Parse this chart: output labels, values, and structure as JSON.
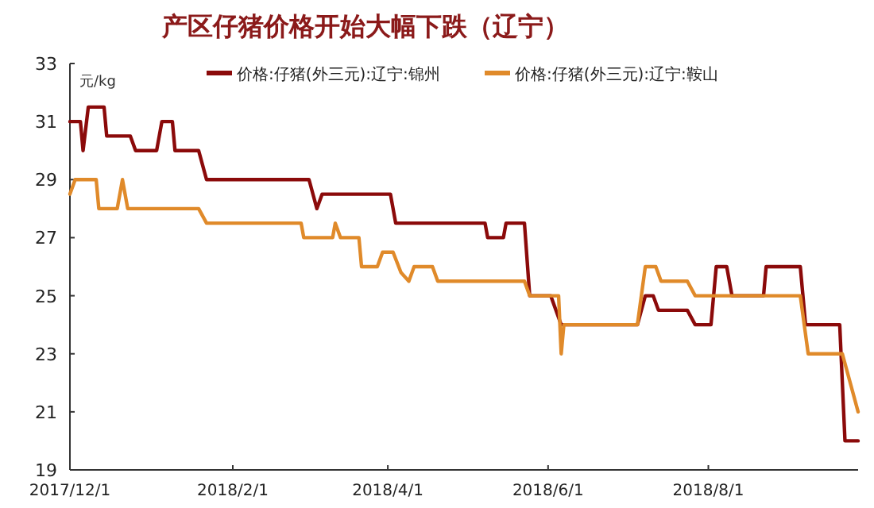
{
  "chart_data": {
    "type": "line",
    "title": "产区仔猪价格开始大幅下跌（辽宁）",
    "ylabel": "元/kg",
    "xlim": [
      "2017-12-01",
      "2018-09-27"
    ],
    "xticks": [
      {
        "value": "2017-12-01",
        "label": "2017/12/1"
      },
      {
        "value": "2018-02-01",
        "label": "2018/2/1"
      },
      {
        "value": "2018-04-01",
        "label": "2018/4/1"
      },
      {
        "value": "2018-06-01",
        "label": "2018/6/1"
      },
      {
        "value": "2018-08-01",
        "label": "2018/8/1"
      }
    ],
    "ylim": [
      19,
      33
    ],
    "yticks": [
      19,
      21,
      23,
      25,
      27,
      29,
      31,
      33
    ],
    "grid": false,
    "legend": "top",
    "line_style": "solid",
    "series": [
      {
        "name": "价格:仔猪(外三元):辽宁:锦州",
        "color": "#8b0a0a",
        "x": [
          "2017-12-01",
          "2017-12-05",
          "2017-12-06",
          "2017-12-08",
          "2017-12-14",
          "2017-12-15",
          "2017-12-24",
          "2017-12-26",
          "2018-01-03",
          "2018-01-05",
          "2018-01-09",
          "2018-01-10",
          "2018-01-19",
          "2018-01-22",
          "2018-03-02",
          "2018-03-05",
          "2018-03-07",
          "2018-04-02",
          "2018-04-04",
          "2018-05-08",
          "2018-05-09",
          "2018-05-15",
          "2018-05-16",
          "2018-05-23",
          "2018-05-25",
          "2018-06-02",
          "2018-06-06",
          "2018-07-05",
          "2018-07-08",
          "2018-07-11",
          "2018-07-13",
          "2018-07-24",
          "2018-07-27",
          "2018-08-02",
          "2018-08-04",
          "2018-08-08",
          "2018-08-10",
          "2018-08-22",
          "2018-08-23",
          "2018-09-05",
          "2018-09-07",
          "2018-09-20",
          "2018-09-22",
          "2018-09-27"
        ],
        "values": [
          31,
          31,
          30,
          31.5,
          31.5,
          30.5,
          30.5,
          30,
          30,
          31,
          31,
          30,
          30,
          29,
          29,
          28,
          28.5,
          28.5,
          27.5,
          27.5,
          27,
          27,
          27.5,
          27.5,
          25,
          25,
          24,
          24,
          25,
          25,
          24.5,
          24.5,
          24,
          24,
          26,
          26,
          25,
          25,
          26,
          26,
          24,
          24,
          20,
          20
        ]
      },
      {
        "name": "价格:仔猪(外三元):辽宁:鞍山",
        "color": "#e08a2a",
        "x": [
          "2017-12-01",
          "2017-12-03",
          "2017-12-11",
          "2017-12-12",
          "2017-12-19",
          "2017-12-21",
          "2017-12-23",
          "2018-01-19",
          "2018-01-22",
          "2018-02-27",
          "2018-02-28",
          "2018-03-11",
          "2018-03-12",
          "2018-03-14",
          "2018-03-21",
          "2018-03-22",
          "2018-03-28",
          "2018-03-30",
          "2018-04-03",
          "2018-04-06",
          "2018-04-09",
          "2018-04-11",
          "2018-04-18",
          "2018-04-20",
          "2018-05-23",
          "2018-05-25",
          "2018-06-05",
          "2018-06-06",
          "2018-06-07",
          "2018-07-05",
          "2018-07-08",
          "2018-07-12",
          "2018-07-14",
          "2018-07-24",
          "2018-07-27",
          "2018-09-05",
          "2018-09-08",
          "2018-09-21",
          "2018-09-27"
        ],
        "values": [
          28.5,
          29,
          29,
          28,
          28,
          29,
          28,
          28,
          27.5,
          27.5,
          27,
          27,
          27.5,
          27,
          27,
          26,
          26,
          26.5,
          26.5,
          25.8,
          25.5,
          26,
          26,
          25.5,
          25.5,
          25,
          25,
          23,
          24,
          24,
          26,
          26,
          25.5,
          25.5,
          25,
          25,
          23,
          23,
          21
        ]
      }
    ]
  }
}
